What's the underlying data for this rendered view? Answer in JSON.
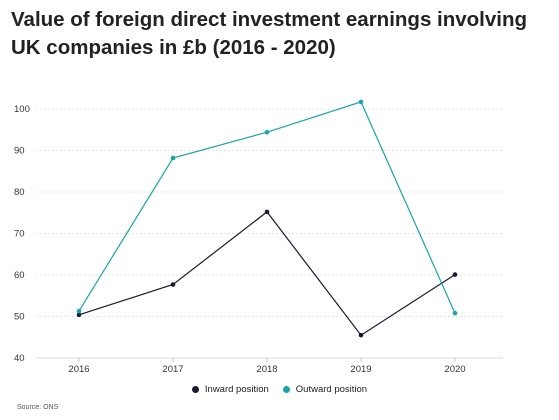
{
  "title": "Value of foreign direct investment earnings involving UK companies in £b (2016 - 2020)",
  "source": "Source: ONS",
  "chart_data": {
    "type": "line",
    "title": "Value of foreign direct investment earnings involving UK companies in £b (2016 - 2020)",
    "x": [
      "2016",
      "2017",
      "2018",
      "2019",
      "2020"
    ],
    "yticks": [
      40,
      50,
      60,
      70,
      80,
      90,
      100
    ],
    "ylim": [
      40,
      105
    ],
    "grid": true,
    "legend": "bottom",
    "series": [
      {
        "name": "Inward position",
        "color": "#161a33",
        "values": [
          50.4,
          57.7,
          75.2,
          45.5,
          60.1
        ]
      },
      {
        "name": "Outward position",
        "color": "#1aa5aa",
        "values": [
          51.3,
          88.2,
          94.4,
          101.7,
          50.8
        ]
      }
    ]
  }
}
